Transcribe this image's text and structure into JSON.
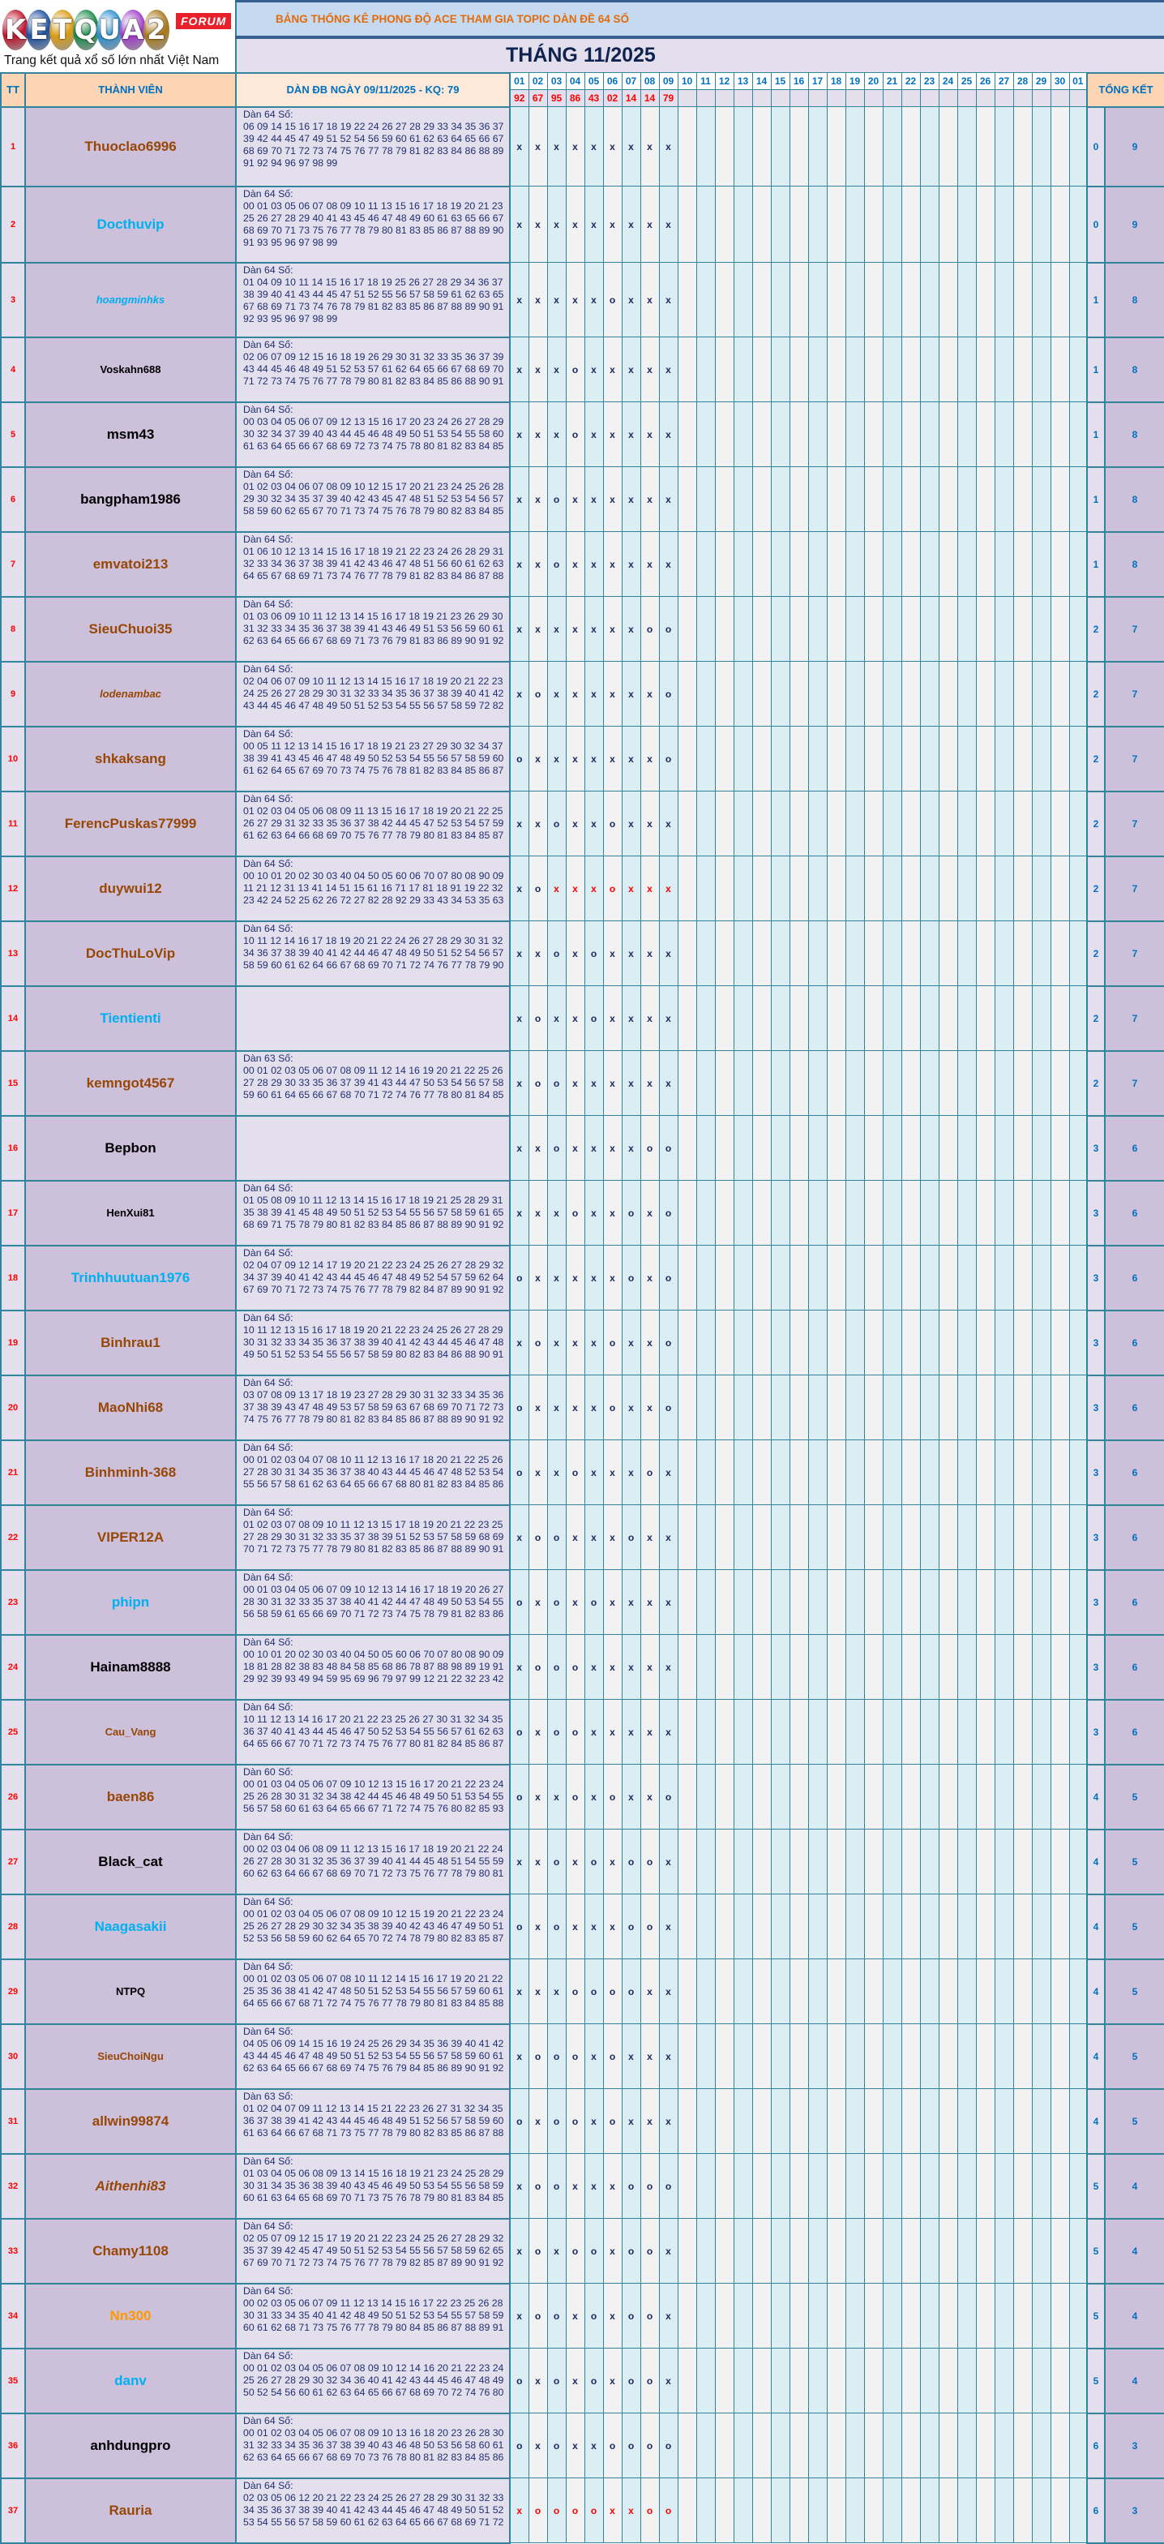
{
  "logo": {
    "letters": [
      "K",
      "E",
      "T",
      "Q",
      "U",
      "A",
      "2"
    ],
    "ball_colors": [
      "#c0142c",
      "#1b4fa0",
      "#d99a12",
      "#1a8a4a",
      "#2a8fd0",
      "#a03cc8",
      "#a8781a"
    ],
    "badge": "FORUM",
    "tagline": "Trang kết quả xổ số lớn nhất Việt Nam"
  },
  "header": {
    "title": "BẢNG THỐNG KÊ PHONG ĐỘ ACE THAM GIA TOPIC DÀN ĐỀ 64 SỐ",
    "month": "THÁNG 11/2025",
    "col_tt": "TT",
    "col_member": "THÀNH VIÊN",
    "col_dan": "DÀN ĐB NGÀY 09/11/2025 - KQ: 79",
    "col_total": "TỔNG KẾT",
    "days": [
      "01",
      "02",
      "03",
      "04",
      "05",
      "06",
      "07",
      "08",
      "09",
      "10",
      "11",
      "12",
      "13",
      "14",
      "15",
      "16",
      "17",
      "18",
      "19",
      "20",
      "21",
      "22",
      "23",
      "24",
      "25",
      "26",
      "27",
      "28",
      "29",
      "30",
      "01"
    ],
    "results": [
      "92",
      "67",
      "95",
      "86",
      "43",
      "02",
      "14",
      "14",
      "79"
    ]
  },
  "colors": {
    "brown": "#974706",
    "blue": "#00b0f0",
    "black": "#000000",
    "orange": "#ff9900",
    "border": "#31849b",
    "mark_highlight": "#ff0000"
  },
  "rows": [
    {
      "tt": "1",
      "name": "Thuoclao6996",
      "color": "brown",
      "label": "Dàn 64 Số:",
      "lines": [
        "06 09 14 15 16 17 18 19 22 24 26 27 28 29 33 34 35 36 37",
        "39 42 44 45 47 49 51 52 54 56 59 60 61 62 63 64 65 66 67",
        "68 69 70 71 72 73 74 75 76 77 78 79 81 82 83 84 86 88 89",
        "91 92 94 96 97 98 99"
      ],
      "marks": "xxxxxxxxx",
      "o": "0",
      "x": "9"
    },
    {
      "tt": "2",
      "name": "Docthuvip",
      "color": "blue",
      "label": "Dàn 64 Số:",
      "lines": [
        "00 01 03 05 06 07 08 09 10 11 13 15 16 17 18 19 20 21 23",
        "25 26 27 28 29 40 41 43 45 46 47 48 49 60 61 63 65 66 67",
        "68 69 70 71 73 75 76 77 78 79 80 81 83 85 86 87 88 89 90",
        "91 93 95 96 97 98 99"
      ],
      "marks": "xxxxxxxxx",
      "o": "0",
      "x": "9"
    },
    {
      "tt": "3",
      "name": "hoangminhks",
      "color": "blue",
      "italic": true,
      "small": true,
      "label": "Dàn 64 Số:",
      "lines": [
        "01 04 09 10 11 14 15 16 17 18 19 25 26 27 28 29 34 36 37",
        "38 39 40 41 43 44 45 47 51 52 55 56 57 58 59 61 62 63 65",
        "67 68 69 71 73 74 76 78 79 81 82 83 85 86 87 88 89 90 91",
        "92 93 95 96 97 98 99"
      ],
      "marks": "xxxxxoxxx",
      "o": "1",
      "x": "8"
    },
    {
      "tt": "4",
      "name": "Voskahn688",
      "color": "black",
      "small": true,
      "label": "Dàn 64 Số:",
      "lines": [
        "02 06 07 09 12 15 16 18 19 26 29 30 31 32 33 35 36 37 39",
        "43 44 45 46 48 49 51 52 53 57 61 62 64 65 66 67 68 69 70",
        "71 72 73 74 75 76 77 78 79 80 81 82 83 84 85 86 88 90 91"
      ],
      "marks": "xxxoxxxxx",
      "o": "1",
      "x": "8"
    },
    {
      "tt": "5",
      "name": "msm43",
      "color": "black",
      "label": "Dàn 64 Số:",
      "lines": [
        "00 03 04 05 06 07 09 12 13 15 16 17 20 23 24 26 27 28 29",
        "30 32 34 37 39 40 43 44 45 46 48 49 50 51 53 54 55 58 60",
        "61 63 64 65 66 67 68 69 72 73 74 75 78 80 81 82 83 84 85"
      ],
      "marks": "xxxoxxxxx",
      "o": "1",
      "x": "8"
    },
    {
      "tt": "6",
      "name": "bangpham1986",
      "color": "black",
      "label": "Dàn 64 Số:",
      "lines": [
        "01 02 03 04 06 07 08 09 10 12 15 17 20 21 23 24 25 26 28",
        "29 30 32 34 35 37 39 40 42 43 45 47 48 51 52 53 54 56 57",
        "58 59 60 62 65 67 70 71 73 74 75 76 78 79 80 82 83 84 85"
      ],
      "marks": "xxoxxxxxx",
      "o": "1",
      "x": "8"
    },
    {
      "tt": "7",
      "name": "emvatoi213",
      "color": "brown",
      "label": "Dàn 64 Số:",
      "lines": [
        "01 06 10 12 13 14 15 16 17 18 19 21 22 23 24 26 28 29 31",
        "32 33 34 36 37 38 39 41 42 43 46 47 48 51 56 60 61 62 63",
        "64 65 67 68 69 71 73 74 76 77 78 79 81 82 83 84 86 87 88"
      ],
      "marks": "xxoxxxxxx",
      "o": "1",
      "x": "8"
    },
    {
      "tt": "8",
      "name": "SieuChuoi35",
      "color": "brown",
      "label": "Dàn 64 Số:",
      "lines": [
        "01 03 06 09 10 11 12 13 14 15 16 17 18 19 21 23 26 29 30",
        "31 32 33 34 35 36 37 38 39 41 43 46 49 51 53 56 59 60 61",
        "62 63 64 65 66 67 68 69 71 73 76 79 81 83 86 89 90 91 92"
      ],
      "marks": "xxxxxxxoo",
      "o": "2",
      "x": "7"
    },
    {
      "tt": "9",
      "name": "lodenambac",
      "color": "brown",
      "italic": true,
      "small": true,
      "label": "Dàn 64 Số:",
      "lines": [
        "02 04 06 07 09 10 11 12 13 14 15 16 17 18 19 20 21 22 23",
        "24 25 26 27 28 29 30 31 32 33 34 35 36 37 38 39 40 41 42",
        "43 44 45 46 47 48 49 50 51 52 53 54 55 56 57 58 59 72 82"
      ],
      "marks": "xoxxxxxxo",
      "o": "2",
      "x": "7"
    },
    {
      "tt": "10",
      "name": "shkaksang",
      "color": "brown",
      "label": "Dàn 64 Số:",
      "lines": [
        "00 05 11 12 13 14 15 16 17 18 19 21 23 27 29 30 32 34 37",
        "38 39 41 43 45 46 47 48 49 50 52 53 54 55 56 57 58 59 60",
        "61 62 64 65 67 69 70 73 74 75 76 78 81 82 83 84 85 86 87"
      ],
      "marks": "oxxxxxxxo",
      "o": "2",
      "x": "7"
    },
    {
      "tt": "11",
      "name": "FerencPuskas77999",
      "color": "brown",
      "label": "Dàn 64 Số:",
      "lines": [
        "01 02 03 04 05 06 08 09 11 13 15 16 17 18 19 20 21 22 25",
        "26 27 29 31 32 33 35 36 37 38 42 44 45 47 52 53 54 57 59",
        "61 62 63 64 66 68 69 70 75 76 77 78 79 80 81 83 84 85 87"
      ],
      "marks": "xxoxxoxxx",
      "o": "2",
      "x": "7"
    },
    {
      "tt": "12",
      "name": "duywui12",
      "color": "brown",
      "label": "Dàn 64 Số:",
      "lines": [
        "00 10 01 20 02 30 03 40 04 50 05 60 06 70 07 80 08 90 09",
        "11 21 12 31 13 41 14 51 15 61 16 71 17 81 18 91 19 22 32",
        "23 42 24 52 25 62 26 72 27 82 28 92 29 33 43 34 53 35 63"
      ],
      "marks": "xoxxxoxxx",
      "highlight_from": 2,
      "o": "2",
      "x": "7"
    },
    {
      "tt": "13",
      "name": "DocThuLoVip",
      "color": "brown",
      "label": "Dàn 64 Số:",
      "lines": [
        "10 11 12 14 16 17 18 19 20 21 22 24 26 27 28 29 30 31 32",
        "34 36 37 38 39 40 41 42 44 46 47 48 49 50 51 52 54 56 57",
        "58 59 60 61 62 64 66 67 68 69 70 71 72 74 76 77 78 79 90"
      ],
      "marks": "xxoxoxxxx",
      "o": "2",
      "x": "7"
    },
    {
      "tt": "14",
      "name": "Tientienti",
      "color": "blue",
      "label": "",
      "lines": [],
      "marks": "xoxxoxxxx",
      "o": "2",
      "x": "7"
    },
    {
      "tt": "15",
      "name": "kemngot4567",
      "color": "brown",
      "label": "Dàn 63 Số:",
      "lines": [
        "00 01 02 03 05 06 07 08 09 11 12 14 16 19 20 21 22 25 26",
        "27 28 29 30 33 35 36 37 39 41 43 44 47 50 53 54 56 57 58",
        "59 60 61 64 65 66 67 68 70 71 72 74 76 77 78 80 81 84 85"
      ],
      "marks": "xooxxxxxx",
      "o": "2",
      "x": "7"
    },
    {
      "tt": "16",
      "name": "Bepbon",
      "color": "black",
      "label": "",
      "lines": [],
      "marks": "xxoxxxxoo",
      "o": "3",
      "x": "6"
    },
    {
      "tt": "17",
      "name": "HenXui81",
      "color": "black",
      "small": true,
      "label": "Dàn 64 Số:",
      "lines": [
        "01 05 08 09 10 11 12 13 14 15 16 17 18 19 21 25 28 29 31",
        "35 38 39 41 45 48 49 50 51 52 53 54 55 56 57 58 59 61 65",
        "68 69 71 75 78 79 80 81 82 83 84 85 86 87 88 89 90 91 92"
      ],
      "marks": "xxxoxxoxo",
      "o": "3",
      "x": "6"
    },
    {
      "tt": "18",
      "name": "Trinhhuutuan1976",
      "color": "blue",
      "label": "Dàn 64 Số:",
      "lines": [
        "02 04 07 09 12 14 17 19 20 21 22 23 24 25 26 27 28 29 32",
        "34 37 39 40 41 42 43 44 45 46 47 48 49 52 54 57 59 62 64",
        "67 69 70 71 72 73 74 75 76 77 78 79 82 84 87 89 90 91 92"
      ],
      "marks": "oxxxxxoxo",
      "o": "3",
      "x": "6"
    },
    {
      "tt": "19",
      "name": "Binhrau1",
      "color": "brown",
      "label": "Dàn 64 Số:",
      "lines": [
        "10 11 12 13 15 16 17 18 19 20 21 22 23 24 25 26 27 28 29",
        "30 31 32 33 34 35 36 37 38 39 40 41 42 43 44 45 46 47 48",
        "49 50 51 52 53 54 55 56 57 58 59 80 82 83 84 86 88 90 91"
      ],
      "marks": "xoxxxoxxo",
      "o": "3",
      "x": "6"
    },
    {
      "tt": "20",
      "name": "MaoNhi68",
      "color": "brown",
      "label": "Dàn 64 Số:",
      "lines": [
        "03 07 08 09 13 17 18 19 23 27 28 29 30 31 32 33 34 35 36",
        "37 38 39 43 47 48 49 53 57 58 59 63 67 68 69 70 71 72 73",
        "74 75 76 77 78 79 80 81 82 83 84 85 86 87 88 89 90 91 92"
      ],
      "marks": "oxxxxoxxo",
      "o": "3",
      "x": "6"
    },
    {
      "tt": "21",
      "name": "Binhminh-368",
      "color": "brown",
      "label": "Dàn 64 Số:",
      "lines": [
        "00 01 02 03 04 07 08 10 11 12 13 16 17 18 20 21 22 25 26",
        "27 28 30 31 34 35 36 37 38 40 43 44 45 46 47 48 52 53 54",
        "55 56 57 58 61 62 63 64 65 66 67 68 80 81 82 83 84 85 86"
      ],
      "marks": "oxxoxxxox",
      "o": "3",
      "x": "6"
    },
    {
      "tt": "22",
      "name": "VIPER12A",
      "color": "brown",
      "label": "Dàn 64 Số:",
      "lines": [
        "01 02 03 07 08 09 10 11 12 13 15 17 18 19 20 21 22 23 25",
        "27 28 29 30 31 32 33 35 37 38 39 51 52 53 57 58 59 68 69",
        "70 71 72 73 75 77 78 79 80 81 82 83 85 86 87 88 89 90 91"
      ],
      "marks": "xooxxxoxx",
      "o": "3",
      "x": "6"
    },
    {
      "tt": "23",
      "name": "phipn",
      "color": "blue",
      "label": "Dàn 64 Số:",
      "lines": [
        "00 01 03 04 05 06 07 09 10 12 13 14 16 17 18 19 20 26 27",
        "28 30 31 32 33 35 37 38 40 41 42 44 47 48 49 50 53 54 55",
        "56 58 59 61 65 66 69 70 71 72 73 74 75 78 79 81 82 83 86"
      ],
      "marks": "oxoxoxxxx",
      "o": "3",
      "x": "6"
    },
    {
      "tt": "24",
      "name": "Hainam8888",
      "color": "black",
      "label": "Dàn 64 Số:",
      "lines": [
        "00 10 01 20 02 30 03 40 04 50 05 60 06 70 07 80 08 90 09",
        "18 81 28 82 38 83 48 84 58 85 68 86 78 87 88 98 89 19 91",
        "29 92 39 93 49 94 59 95 69 96 79 97 99 12 21 22 32 23 42"
      ],
      "marks": "xoooxxxxx",
      "o": "3",
      "x": "6"
    },
    {
      "tt": "25",
      "name": "Cau_Vang",
      "color": "brown",
      "small": true,
      "label": "Dàn 64 Số:",
      "lines": [
        "10 11 12 13 14 16 17 20 21 22 23 25 26 27 30 31 32 34 35",
        "36 37 40 41 43 44 45 46 47 50 52 53 54 55 56 57 61 62 63",
        "64 65 66 67 70 71 72 73 74 75 76 77 80 81 82 84 85 86 87"
      ],
      "marks": "oxooxxxxx",
      "o": "3",
      "x": "6"
    },
    {
      "tt": "26",
      "name": "baen86",
      "color": "brown",
      "label": "Dàn 60 Số:",
      "lines": [
        "00 01 03 04 05 06 07 09 10 12 13 15 16 17 20 21 22 23 24",
        "25 26 28 30 31 32 34 38 42 44 45 46 48 49 50 51 53 54 55",
        "56 57 58 60 61 63 64 65 66 67 71 72 74 75 76 80 82 85 93"
      ],
      "marks": "oxxoxoxxo",
      "o": "4",
      "x": "5"
    },
    {
      "tt": "27",
      "name": "Black_cat",
      "color": "black",
      "label": "Dàn 64 Số:",
      "lines": [
        "00 02 03 04 06 08 09 11 12 13 15 16 17 18 19 20 21 22 24",
        "26 27 28 30 31 32 35 36 37 39 40 41 44 45 48 51 54 55 59",
        "60 62 63 64 66 67 68 69 70 71 72 73 75 76 77 78 79 80 81"
      ],
      "marks": "xxoxoxoox",
      "o": "4",
      "x": "5"
    },
    {
      "tt": "28",
      "name": "Naagasakii",
      "color": "blue",
      "label": "Dàn 64 Số:",
      "lines": [
        "00 01 02 03 04 05 06 07 08 09 10 12 15 19 20 21 22 23 24",
        "25 26 27 28 29 30 32 34 35 38 39 40 42 43 46 47 49 50 51",
        "52 53 56 58 59 60 62 64 65 70 72 74 78 79 80 82 83 85 87"
      ],
      "marks": "oxoxxxoox",
      "o": "4",
      "x": "5"
    },
    {
      "tt": "29",
      "name": "NTPQ",
      "color": "black",
      "small": true,
      "label": "Dàn 64 Số:",
      "lines": [
        "00 01 02 03 05 06 07 08 10 11 12 14 15 16 17 19 20 21 22",
        "25 35 36 38 41 42 47 48 50 51 52 53 54 55 56 57 59 60 61",
        "64 65 66 67 68 71 72 74 75 76 77 78 79 80 81 83 84 85 88"
      ],
      "marks": "xxxooooxx",
      "o": "4",
      "x": "5"
    },
    {
      "tt": "30",
      "name": "SieuChoiNgu",
      "color": "brown",
      "small": true,
      "label": "Dàn 64 Số:",
      "lines": [
        "04 05 06 09 14 15 16 19 24 25 26 29 34 35 36 39 40 41 42",
        "43 44 45 46 47 48 49 50 51 52 53 54 55 56 57 58 59 60 61",
        "62 63 64 65 66 67 68 69 74 75 76 79 84 85 86 89 90 91 92"
      ],
      "marks": "xoooxoxxx",
      "o": "4",
      "x": "5"
    },
    {
      "tt": "31",
      "name": "allwin99874",
      "color": "brown",
      "label": "Dàn 63 Số:",
      "lines": [
        "01 02 04 07 09 11 12 13 14 15 21 22 23 26 27 31 32 34 35",
        "36 37 38 39 41 42 43 44 45 46 48 49 51 52 56 57 58 59 60",
        "61 63 64 66 67 68 71 73 75 77 78 79 80 82 83 85 86 87 88"
      ],
      "marks": "oxooxoxxx",
      "o": "4",
      "x": "5"
    },
    {
      "tt": "32",
      "name": "Aithenhi83",
      "color": "brown",
      "italic": true,
      "label": "Dàn 64 Số:",
      "lines": [
        "01 03 04 05 06 08 09 13 14 15 16 18 19 21 23 24 25 28 29",
        "30 31 34 35 36 38 39 40 43 45 46 49 50 53 54 55 56 58 59",
        "60 61 63 64 65 68 69 70 71 73 75 76 78 79 80 81 83 84 85"
      ],
      "marks": "xooxxxooo",
      "o": "5",
      "x": "4"
    },
    {
      "tt": "33",
      "name": "Chamy1108",
      "color": "brown",
      "label": "Dàn 64 Số:",
      "lines": [
        "02 05 07 09 12 15 17 19 20 21 22 23 24 25 26 27 28 29 32",
        "35 37 39 42 45 47 49 50 51 52 53 54 55 56 57 58 59 62 65",
        "67 69 70 71 72 73 74 75 76 77 78 79 82 85 87 89 90 91 92"
      ],
      "marks": "xoxooxoox",
      "o": "5",
      "x": "4"
    },
    {
      "tt": "34",
      "name": "Nn300",
      "color": "orange",
      "label": "Dàn 64 Số:",
      "lines": [
        "00 02 03 05 06 07 09 11 12 13 14 15 16 17 22 23 25 26 28",
        "30 31 33 34 35 40 41 42 48 49 50 51 52 53 54 55 57 58 59",
        "60 61 62 68 71 73 75 76 77 78 79 80 84 85 86 87 88 89 91"
      ],
      "marks": "xooxoxoox",
      "o": "5",
      "x": "4"
    },
    {
      "tt": "35",
      "name": "danv",
      "color": "blue",
      "label": "Dàn 64 Số:",
      "lines": [
        "00 01 02 03 04 05 06 07 08 09 10 12 14 16 20 21 22 23 24",
        "25 26 27 28 29 30 32 34 36 40 41 42 43 44 45 46 47 48 49",
        "50 52 54 56 60 61 62 63 64 65 66 67 68 69 70 72 74 76 80"
      ],
      "marks": "oxoxoxoox",
      "o": "5",
      "x": "4"
    },
    {
      "tt": "36",
      "name": "anhdungpro",
      "color": "black",
      "label": "Dàn 64 Số:",
      "lines": [
        "00 01 02 03 04 05 06 07 08 09 10 13 16 18 20 23 26 28 30",
        "31 32 33 34 35 36 37 38 39 40 43 46 48 50 53 56 58 60 61",
        "62 63 64 65 66 67 68 69 70 73 76 78 80 81 82 83 84 85 86"
      ],
      "marks": "oxoxxoooo",
      "o": "6",
      "x": "3"
    },
    {
      "tt": "37",
      "name": "Rauria",
      "color": "brown",
      "label": "Dàn 64 Số:",
      "lines": [
        "02 03 05 06 12 20 21 22 23 24 25 26 27 28 29 30 31 32 33",
        "34 35 36 37 38 39 40 41 42 43 44 45 46 47 48 49 50 51 52",
        "53 54 55 56 57 58 59 60 61 62 63 64 65 66 67 68 69 71 72"
      ],
      "marks": "xooooxxoo",
      "highlight_from": 0,
      "o": "6",
      "x": "3"
    }
  ]
}
